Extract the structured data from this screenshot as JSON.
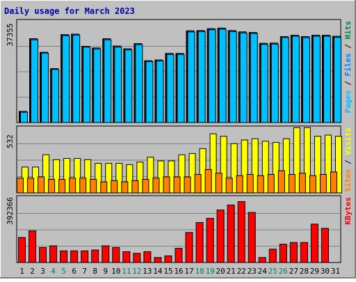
{
  "chart_data": {
    "type": "bar",
    "title": "Daily usage for March 2023",
    "categories": [
      "1",
      "2",
      "3",
      "4",
      "5",
      "6",
      "7",
      "8",
      "9",
      "10",
      "11",
      "12",
      "13",
      "14",
      "15",
      "16",
      "17",
      "18",
      "19",
      "20",
      "21",
      "22",
      "23",
      "24",
      "25",
      "26",
      "27",
      "28",
      "29",
      "30",
      "31"
    ],
    "weekend_days": [
      "4",
      "5",
      "11",
      "12",
      "18",
      "19",
      "25",
      "26"
    ],
    "panels": [
      {
        "id": "hits",
        "max_label": "37355",
        "ymax": 37355,
        "legend": [
          "Pages",
          "Files",
          "Hits"
        ],
        "legend_colors": [
          "#00c0ff",
          "#0080ff",
          "#008040"
        ],
        "series": [
          {
            "name": "Hits",
            "color": "#008040",
            "values": [
              4100,
              30800,
              25800,
              19800,
              32300,
              32500,
              28000,
              27400,
              30800,
              28100,
              27100,
              29000,
              22700,
              23000,
              25400,
              25400,
              33700,
              33800,
              34500,
              34700,
              33800,
              33300,
              33100,
              29100,
              29200,
              31600,
              32100,
              31600,
              32100,
              32100,
              31700
            ]
          },
          {
            "name": "Files",
            "color": "#0080ff",
            "values": [
              4100,
              30800,
              25800,
              19800,
              32300,
              32500,
              28000,
              27400,
              30800,
              28100,
              27100,
              29000,
              22700,
              23000,
              25400,
              25400,
              33700,
              33800,
              34500,
              34700,
              33800,
              33300,
              33100,
              29100,
              29200,
              31600,
              32100,
              31600,
              32100,
              32100,
              31700
            ]
          },
          {
            "name": "Pages",
            "color": "#00c0ff",
            "values": [
              3800,
              30400,
              25500,
              19500,
              31900,
              32100,
              27700,
              27000,
              30400,
              27700,
              26700,
              28600,
              22400,
              22600,
              25000,
              25000,
              33300,
              33400,
              34100,
              34300,
              33400,
              32900,
              32700,
              28700,
              28800,
              31200,
              31700,
              31200,
              31700,
              31700,
              31300
            ]
          }
        ]
      },
      {
        "id": "visits",
        "max_label": "532",
        "ymax": 532,
        "legend": [
          "Sites",
          "Visits"
        ],
        "legend_colors": [
          "#ff8000",
          "#ffff00"
        ],
        "series": [
          {
            "name": "Visits",
            "color": "#ffff00",
            "values": [
              210,
              210,
              310,
              270,
              280,
              280,
              270,
              240,
              240,
              240,
              230,
              250,
              290,
              260,
              260,
              310,
              320,
              360,
              480,
              460,
              400,
              430,
              440,
              420,
              410,
              440,
              530,
              530,
              460,
              470,
              460
            ]
          },
          {
            "name": "Sites",
            "color": "#ff8000",
            "values": [
              120,
              120,
              130,
              110,
              110,
              120,
              120,
              110,
              90,
              100,
              90,
              100,
              110,
              120,
              130,
              130,
              130,
              150,
              190,
              160,
              120,
              140,
              150,
              140,
              150,
              180,
              150,
              160,
              140,
              150,
              170
            ]
          }
        ]
      },
      {
        "id": "kbytes",
        "max_label": "392366",
        "ymax": 392366,
        "legend": [
          "KBytes"
        ],
        "legend_colors": [
          "#ff0000"
        ],
        "series": [
          {
            "name": "KBytes",
            "color": "#ff0000",
            "values": [
              150000,
              190000,
              90000,
              100000,
              70000,
              70000,
              70000,
              75000,
              100000,
              90000,
              65000,
              55000,
              65000,
              30000,
              40000,
              85000,
              180000,
              240000,
              265000,
              315000,
              345000,
              365000,
              300000,
              30000,
              80000,
              110000,
              120000,
              120000,
              230000,
              205000,
              0
            ]
          }
        ]
      }
    ]
  }
}
